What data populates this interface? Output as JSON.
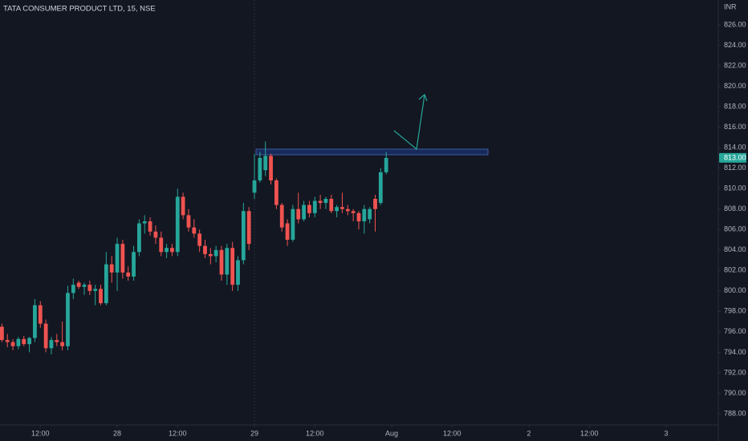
{
  "chart_data": {
    "type": "candlestick",
    "title": "TATA CONSUMER PRODUCT LTD, 15, NSE",
    "currency": "INR",
    "up_color": "#26a69a",
    "down_color": "#ef5350",
    "grid": false,
    "x": [
      4,
      5,
      6,
      7,
      8,
      9,
      10,
      11,
      12,
      13,
      14,
      15,
      16,
      17,
      18,
      19,
      20,
      21,
      22,
      23,
      24,
      25,
      26,
      27,
      28,
      29,
      30,
      31,
      32,
      33,
      34,
      35,
      36,
      37,
      38,
      39,
      40,
      41,
      42,
      43,
      44,
      45,
      46,
      47,
      48,
      49,
      50,
      51,
      52,
      53,
      54,
      55,
      56,
      57,
      58,
      59,
      60,
      61,
      62,
      63,
      64,
      65,
      66,
      67,
      68,
      69,
      70,
      71,
      72,
      73,
      74
    ],
    "open": [
      796.5,
      795.2,
      795.0,
      794.6,
      795.3,
      794.8,
      795.4,
      798.6,
      796.8,
      794.4,
      795.2,
      795.0,
      794.6,
      799.8,
      800.8,
      800.4,
      800.6,
      800.0,
      800.2,
      798.8,
      802.6,
      801.8,
      804.6,
      801.8,
      801.4,
      803.8,
      806.6,
      806.8,
      805.8,
      805.2,
      803.8,
      804.2,
      803.8,
      809.2,
      807.4,
      806.2,
      805.6,
      804.4,
      803.6,
      803.4,
      804.0,
      801.6,
      804.2,
      800.6,
      803.0,
      807.8,
      809.6,
      810.8,
      811.8,
      813.2,
      810.8,
      808.4,
      806.6,
      805.0,
      808.0,
      807.0,
      808.4,
      807.6,
      808.8,
      808.6,
      809.0,
      807.8,
      808.2,
      808.0,
      807.8,
      807.6,
      806.8,
      807.0,
      809.0,
      808.6,
      811.6
    ],
    "high": [
      796.8,
      795.8,
      795.3,
      795.5,
      795.6,
      795.5,
      799.2,
      799.0,
      797.2,
      795.5,
      795.8,
      797.0,
      800.5,
      801.2,
      801.0,
      800.8,
      801.0,
      800.6,
      800.6,
      803.8,
      803.4,
      805.2,
      805.0,
      802.4,
      804.4,
      807.0,
      807.4,
      807.2,
      806.4,
      805.8,
      804.6,
      804.6,
      810.0,
      809.6,
      808.0,
      807.0,
      806.0,
      805.0,
      804.2,
      804.4,
      804.4,
      804.6,
      804.8,
      803.4,
      808.6,
      808.2,
      813.4,
      813.6,
      814.6,
      813.4,
      811.0,
      808.6,
      807.0,
      808.4,
      809.6,
      808.8,
      808.8,
      809.2,
      809.4,
      809.2,
      809.4,
      808.4,
      809.6,
      808.4,
      808.0,
      807.8,
      808.4,
      808.2,
      809.4,
      812.0,
      813.6
    ],
    "low": [
      795.0,
      794.5,
      794.2,
      794.3,
      794.6,
      794.0,
      795.0,
      796.4,
      794.0,
      793.8,
      794.6,
      794.2,
      794.2,
      799.2,
      800.2,
      799.6,
      799.6,
      798.6,
      798.6,
      798.6,
      800.8,
      800.0,
      801.2,
      801.0,
      801.0,
      803.4,
      805.6,
      805.4,
      804.6,
      803.4,
      803.2,
      803.4,
      803.4,
      807.0,
      805.8,
      805.2,
      803.8,
      803.2,
      802.6,
      802.8,
      801.0,
      800.6,
      800.0,
      800.0,
      802.6,
      804.0,
      809.0,
      810.6,
      811.2,
      810.4,
      808.0,
      805.8,
      804.4,
      804.8,
      806.6,
      806.8,
      807.2,
      807.2,
      808.0,
      808.0,
      807.6,
      807.2,
      807.6,
      807.4,
      806.8,
      806.0,
      805.6,
      806.6,
      805.8,
      808.4,
      811.4
    ],
    "close": [
      795.2,
      795.0,
      794.6,
      795.3,
      794.8,
      795.4,
      798.6,
      796.8,
      794.4,
      795.2,
      795.0,
      794.6,
      799.8,
      800.6,
      800.4,
      800.6,
      800.0,
      800.2,
      798.8,
      802.6,
      801.8,
      804.6,
      801.8,
      801.4,
      803.8,
      806.6,
      806.8,
      805.8,
      805.2,
      803.8,
      804.2,
      803.8,
      809.2,
      807.4,
      806.2,
      805.6,
      804.4,
      803.6,
      803.4,
      804.0,
      801.6,
      804.2,
      800.6,
      803.0,
      807.8,
      804.6,
      810.8,
      813.0,
      813.2,
      810.8,
      808.4,
      806.2,
      805.0,
      808.0,
      807.0,
      808.4,
      807.6,
      808.8,
      808.6,
      809.0,
      807.8,
      808.2,
      808.0,
      807.8,
      807.6,
      806.8,
      808.0,
      808.0,
      808.0,
      811.6,
      813.0
    ],
    "last_price": {
      "value": 813,
      "label": "813.00"
    },
    "xlim": [
      3.65,
      134.5
    ],
    "xticks": [
      {
        "value": 11,
        "label": "12:00"
      },
      {
        "value": 25,
        "label": "28"
      },
      {
        "value": 36,
        "label": "12:00"
      },
      {
        "value": 50,
        "label": "29"
      },
      {
        "value": 61,
        "label": "12:00"
      },
      {
        "value": 75,
        "label": "Aug"
      },
      {
        "value": 86,
        "label": "12:00"
      },
      {
        "value": 100,
        "label": "2"
      },
      {
        "value": 111,
        "label": "12:00"
      },
      {
        "value": 125,
        "label": "3"
      }
    ],
    "ylim": [
      786.9,
      828.43
    ],
    "yticks": [
      {
        "value": 788,
        "label": "788.00"
      },
      {
        "value": 790,
        "label": "790.00"
      },
      {
        "value": 792,
        "label": "792.00"
      },
      {
        "value": 794,
        "label": "794.00"
      },
      {
        "value": 796,
        "label": "796.00"
      },
      {
        "value": 798,
        "label": "798.00"
      },
      {
        "value": 800,
        "label": "800.00"
      },
      {
        "value": 802,
        "label": "802.00"
      },
      {
        "value": 804,
        "label": "804.00"
      },
      {
        "value": 806,
        "label": "806.00"
      },
      {
        "value": 808,
        "label": "808.00"
      },
      {
        "value": 810,
        "label": "810.00"
      },
      {
        "value": 812,
        "label": "812.00"
      },
      {
        "value": 814,
        "label": "814.00"
      },
      {
        "value": 816,
        "label": "816.00"
      },
      {
        "value": 818,
        "label": "818.00"
      },
      {
        "value": 820,
        "label": "820.00"
      },
      {
        "value": 822,
        "label": "822.00"
      },
      {
        "value": 824,
        "label": "824.00"
      },
      {
        "value": 826,
        "label": "826.00"
      }
    ]
  }
}
